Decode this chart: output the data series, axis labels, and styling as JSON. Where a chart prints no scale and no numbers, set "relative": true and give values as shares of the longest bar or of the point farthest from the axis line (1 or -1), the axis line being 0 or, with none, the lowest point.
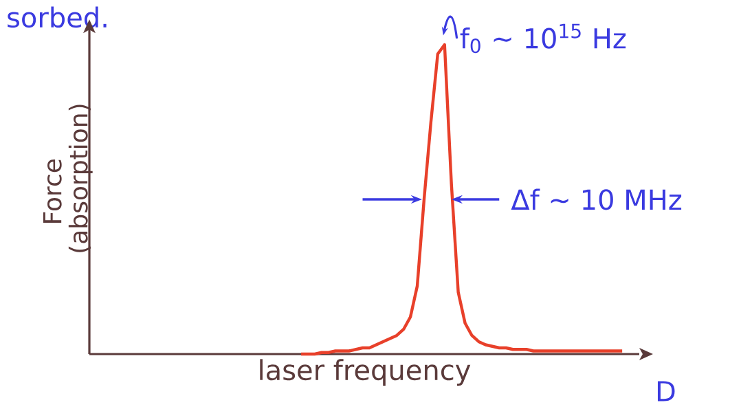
{
  "chart_data": {
    "type": "line",
    "relative": true,
    "xlabel": "laser frequency",
    "ylabel": "Force (absorption)",
    "categories": [
      null,
      null,
      null,
      null,
      null,
      null,
      null,
      null,
      null,
      null,
      null,
      null,
      null,
      null,
      null,
      null,
      null,
      null,
      null,
      null,
      null,
      null,
      null,
      null,
      null,
      null,
      null,
      null,
      null,
      null,
      null,
      null,
      null,
      null,
      null,
      null,
      null,
      null,
      null,
      null,
      null,
      null,
      null,
      null,
      null,
      null,
      null,
      null,
      null,
      null,
      null,
      null,
      null,
      null,
      null,
      null,
      null,
      null,
      null,
      null,
      null,
      null,
      null,
      null,
      null,
      null,
      null,
      null,
      null,
      null,
      null,
      null,
      null,
      null,
      null,
      null,
      null,
      null,
      null,
      null,
      null
    ],
    "series": [
      {
        "color": "#e8402a",
        "values": [
          null,
          null,
          null,
          null,
          null,
          null,
          null,
          null,
          null,
          null,
          null,
          null,
          null,
          null,
          null,
          null,
          null,
          null,
          null,
          null,
          null,
          null,
          null,
          null,
          null,
          null,
          null,
          null,
          null,
          null,
          null,
          0,
          0,
          0,
          0.005,
          0.005,
          0.01,
          0.01,
          0.01,
          0.015,
          0.02,
          0.02,
          0.03,
          0.04,
          0.05,
          0.06,
          0.08,
          0.12,
          0.22,
          0.5,
          0.75,
          0.97,
          1,
          0.55,
          0.2,
          0.1,
          0.06,
          0.04,
          0.03,
          0.025,
          0.02,
          0.02,
          0.015,
          0.015,
          0.015,
          0.01,
          0.01,
          0.01,
          0.01,
          0.01,
          0.01,
          0.01,
          0.01,
          0.01,
          0.01,
          0.01,
          0.01,
          0.01,
          0.01,
          null,
          null
        ]
      }
    ],
    "annotations": [
      "sorbed.",
      "f$_{0}$ ~ 10$^{15}$ Hz",
      "Δf ~ 10 MHz",
      "D"
    ],
    "marker": "none",
    "line_style": "solid"
  }
}
